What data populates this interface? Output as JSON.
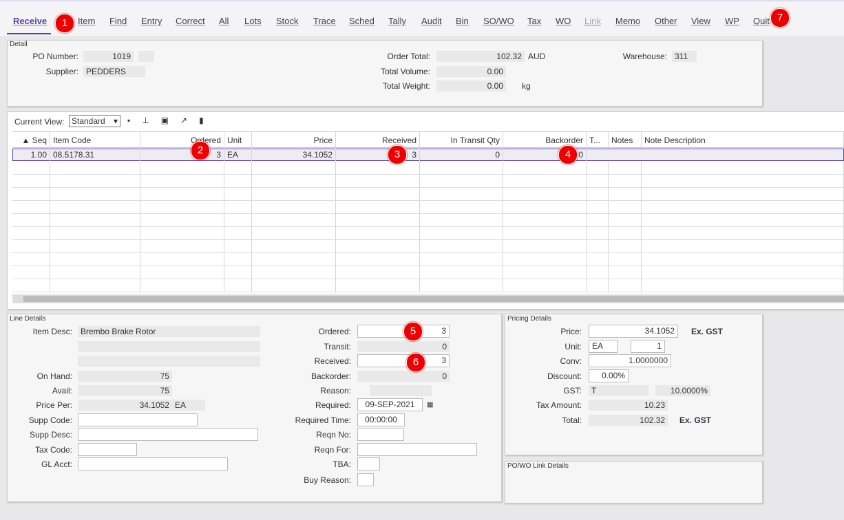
{
  "menu": [
    "Receive",
    "Item",
    "Find",
    "Entry",
    "Correct",
    "All",
    "Lots",
    "Stock",
    "Trace",
    "Sched",
    "Tally",
    "Audit",
    "Bin",
    "SO/WO",
    "Tax",
    "WO",
    "Link",
    "Memo",
    "Other",
    "View",
    "WP",
    "Quit"
  ],
  "badges": [
    "1",
    "2",
    "3",
    "4",
    "5",
    "6",
    "7"
  ],
  "detail": {
    "title": "Detail",
    "po_number_label": "PO Number:",
    "po_number": "1019",
    "supplier_label": "Supplier:",
    "supplier": "PEDDERS",
    "order_total_label": "Order Total:",
    "order_total": "102.32",
    "currency": "AUD",
    "total_volume_label": "Total Volume:",
    "total_volume": "0.00",
    "total_weight_label": "Total Weight:",
    "total_weight": "0.00",
    "weight_unit": "kg",
    "warehouse_label": "Warehouse:",
    "warehouse": "311"
  },
  "grid": {
    "view_label": "Current View:",
    "view": "Standard",
    "columns": [
      "▲ Seq",
      "Item Code",
      "Ordered",
      "Unit",
      "Price",
      "Received",
      "In Transit Qty",
      "Backorder",
      "T...",
      "Notes",
      "Note Description"
    ],
    "rows": [
      [
        "1.00",
        "08.5178.31",
        "3",
        "EA",
        "34.1052",
        "3",
        "0",
        "0"
      ]
    ]
  },
  "line_details": {
    "title": "Line Details",
    "item_desc_label": "Item Desc:",
    "item_desc": "Brembo Brake Rotor",
    "on_hand_label": "On Hand:",
    "on_hand": "75",
    "avail_label": "Avail:",
    "avail": "75",
    "price_per_label": "Price Per:",
    "price_per": "34.1052",
    "price_per_unit": "EA",
    "supp_code_label": "Supp Code:",
    "supp_desc_label": "Supp Desc:",
    "tax_code_label": "Tax Code:",
    "gl_acct_label": "GL Acct:",
    "ordered_label": "Ordered:",
    "ordered": "3",
    "transit_label": "Transit:",
    "transit": "0",
    "received_label": "Received:",
    "received": "3",
    "backorder_label": "Backorder:",
    "backorder": "0",
    "reason_label": "Reason:",
    "required_label": "Required:",
    "required": "09-SEP-2021",
    "required_time_label": "Required Time:",
    "required_time": "00:00:00",
    "reqn_no_label": "Reqn No:",
    "reqn_for_label": "Reqn For:",
    "tba_label": "TBA:",
    "buy_reason_label": "Buy Reason:"
  },
  "pricing": {
    "title": "Pricing Details",
    "price_label": "Price:",
    "price": "34.1052",
    "price_basis": "Ex. GST",
    "unit_label": "Unit:",
    "unit": "EA",
    "unit_qty": "1",
    "conv_label": "Conv:",
    "conv": "1.0000000",
    "discount_label": "Discount:",
    "discount": "0.00%",
    "gst_label": "GST:",
    "gst_code": "T",
    "gst_rate": "10.0000%",
    "tax_amount_label": "Tax Amount:",
    "tax_amount": "10.23",
    "total_label": "Total:",
    "total": "102.32",
    "total_basis": "Ex. GST"
  },
  "link_details": {
    "title": "PO/WO Link Details"
  }
}
